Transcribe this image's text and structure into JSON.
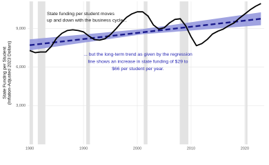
{
  "chart_data": {
    "type": "line",
    "y_label": [
      "State Funding per Student",
      "(Inflation-Adjusted 2023 Dollars)"
    ],
    "annotations": {
      "cycle": [
        "State funding per student moves",
        "up and down with the business cycle..."
      ],
      "trend": [
        "... but the long-term trend as given by the regression",
        "line shows an increase in state funding of $29 to",
        "$66 per student per year."
      ]
    },
    "x": [
      1980,
      1981,
      1982,
      1983,
      1984,
      1985,
      1986,
      1987,
      1988,
      1989,
      1990,
      1991,
      1992,
      1993,
      1994,
      1995,
      1996,
      1997,
      1998,
      1999,
      2000,
      2001,
      2002,
      2003,
      2004,
      2005,
      2006,
      2007,
      2008,
      2009,
      2010,
      2011,
      2012,
      2013,
      2014,
      2015,
      2016,
      2017,
      2018,
      2019,
      2020,
      2021,
      2022,
      2023
    ],
    "series": [
      {
        "color": "#000000",
        "values": [
          7285,
          7120,
          7170,
          7170,
          7600,
          8250,
          8625,
          8840,
          8890,
          8840,
          8730,
          8410,
          8140,
          8090,
          8200,
          8520,
          8950,
          9430,
          9860,
          10130,
          10290,
          10290,
          9960,
          9270,
          8950,
          9050,
          9430,
          9700,
          9750,
          9210,
          8360,
          7660,
          7820,
          8140,
          8570,
          8790,
          8950,
          9210,
          9430,
          9800,
          10120,
          10450,
          10720,
          10930
        ]
      }
    ],
    "trend": {
      "x": [
        1980,
        2023
      ],
      "values": [
        7700,
        9750
      ],
      "color": "#1a1a8c"
    },
    "band": {
      "x": [
        1980,
        2001,
        2023
      ],
      "lower": [
        7300,
        8550,
        9250
      ],
      "upper": [
        8150,
        8950,
        10250
      ],
      "color": "#8f93dc"
    },
    "recessions": [
      [
        1980.0,
        1980.6
      ],
      [
        1981.5,
        1982.9
      ],
      [
        1990.5,
        1991.2
      ],
      [
        2001.2,
        2001.9
      ],
      [
        2007.9,
        2009.5
      ],
      [
        2020.1,
        2020.5
      ]
    ],
    "recession_color": "#e3e3e3",
    "xlim": [
      1979.6,
      2023.6
    ],
    "ylim": [
      0,
      11100
    ],
    "xticks": [
      1980,
      1990,
      2000,
      2010,
      2020
    ],
    "yticks": [
      {
        "value": 3000,
        "label": "3,000"
      },
      {
        "value": 6000,
        "label": "6,000"
      },
      {
        "value": 9000,
        "label": "9,000"
      }
    ],
    "grid": true
  }
}
